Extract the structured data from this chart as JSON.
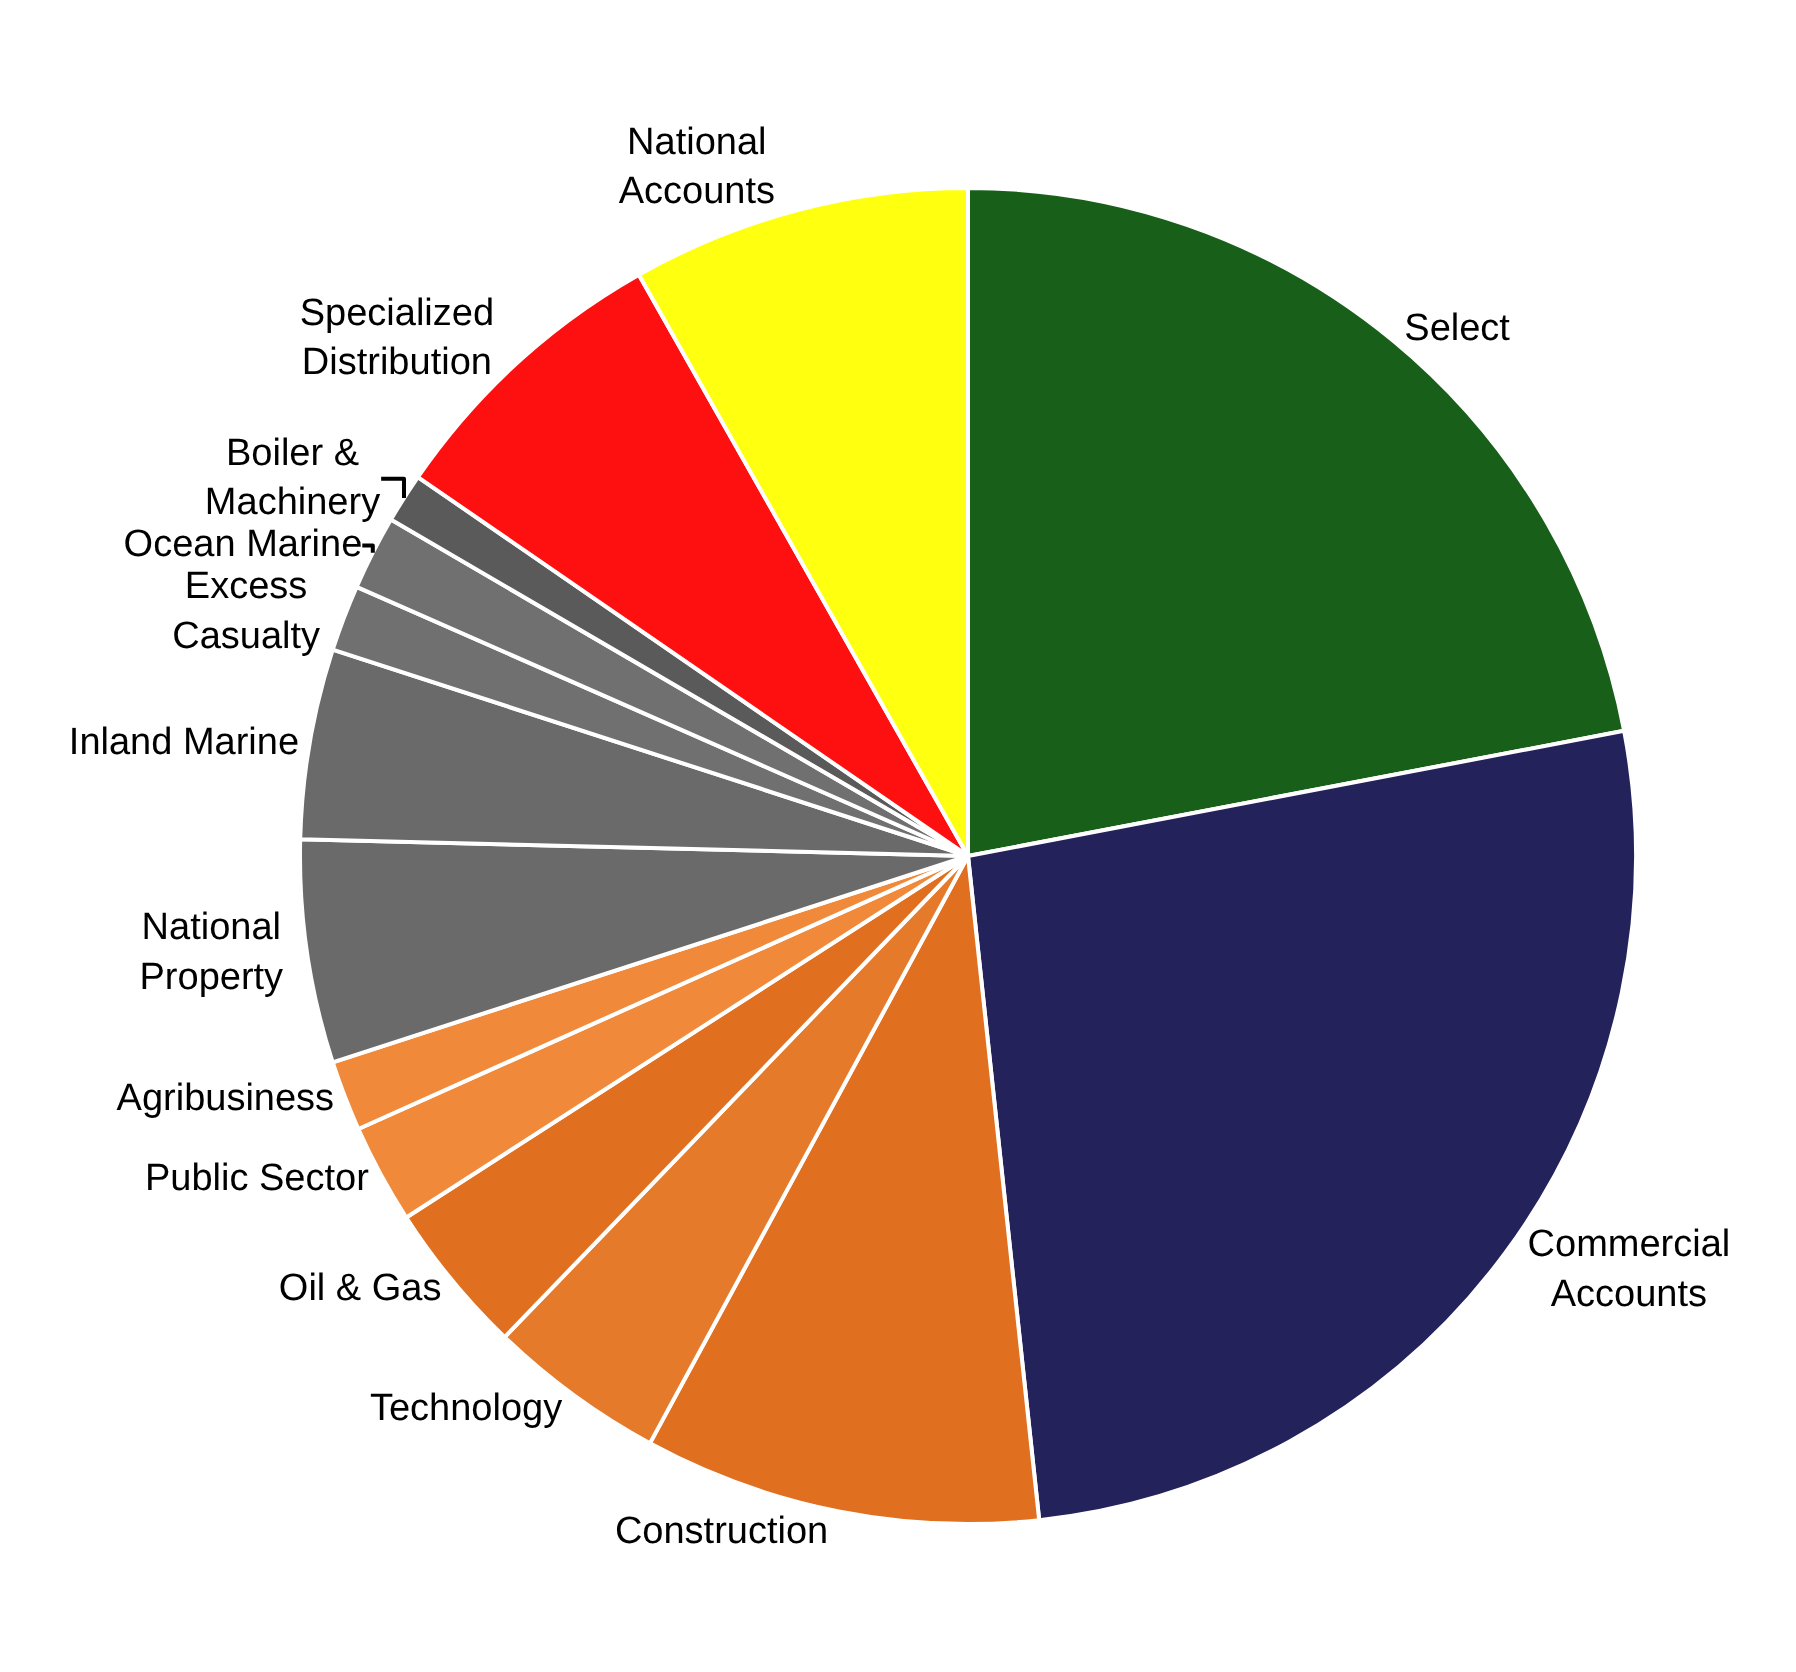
{
  "chart_data": {
    "type": "pie",
    "categories": [
      "Select",
      "Commercial Accounts",
      "Construction",
      "Technology",
      "Oil & Gas",
      "Public Sector",
      "Agribusiness",
      "National Property",
      "Inland Marine",
      "Excess Casualty",
      "Ocean Marine",
      "Boiler & Machinery",
      "Specialized Distribution",
      "National Accounts"
    ],
    "values": [
      22,
      26.3,
      9.6,
      4.3,
      3.7,
      2.4,
      1.7,
      5.4,
      4.6,
      1.6,
      1.8,
      1.2,
      7.2,
      8.2
    ],
    "colors": [
      "#18601a",
      "#24225a",
      "#e07020",
      "#e57a2a",
      "#e07020",
      "#f08a3a",
      "#f08a3a",
      "#6a6a6a",
      "#6a6a6a",
      "#707070",
      "#707070",
      "#5a5a5a",
      "#ff1010",
      "#ffff10"
    ],
    "legend": false
  }
}
